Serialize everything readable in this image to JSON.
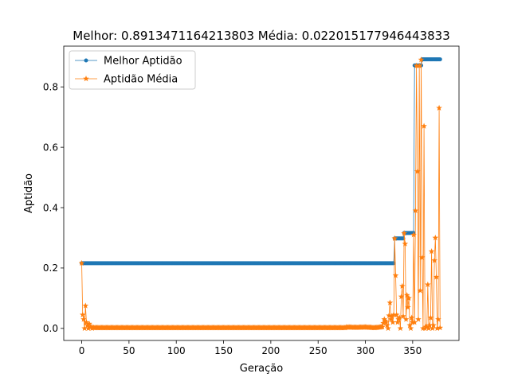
{
  "chart_data": {
    "type": "line",
    "title": "Melhor: 0.8913471164213803 Média: 0.022015177946443833",
    "xlabel": "Geração",
    "ylabel": "Aptidão",
    "xlim": [
      -19,
      399
    ],
    "ylim": [
      -0.04,
      0.935
    ],
    "xticks": [
      0,
      50,
      100,
      150,
      200,
      250,
      300,
      350
    ],
    "yticks": [
      0.0,
      0.2,
      0.4,
      0.6,
      0.8
    ],
    "xtick_labels": [
      "0",
      "50",
      "100",
      "150",
      "200",
      "250",
      "300",
      "350"
    ],
    "ytick_labels": [
      "0.0",
      "0.2",
      "0.4",
      "0.6",
      "0.8"
    ],
    "grid": false,
    "legend": "upper left",
    "n_generations": 380,
    "series": [
      {
        "name": "Melhor Aptidão",
        "color": "#1f77b4",
        "marker": "circle",
        "segments": [
          {
            "from": 0,
            "to": 330,
            "value": 0.216
          },
          {
            "from": 331,
            "to": 340,
            "value": 0.298
          },
          {
            "from": 341,
            "to": 351,
            "value": 0.316
          },
          {
            "from": 352,
            "to": 359,
            "value": 0.871
          },
          {
            "from": 360,
            "to": 379,
            "value": 0.8913
          }
        ]
      },
      {
        "name": "Aptidão Média",
        "color": "#ff7f0e",
        "marker": "star",
        "baseline": 0.002,
        "points": [
          [
            0,
            0.216
          ],
          [
            1,
            0.045
          ],
          [
            2,
            0.03
          ],
          [
            3,
            0.0
          ],
          [
            4,
            0.075
          ],
          [
            5,
            0.02
          ],
          [
            6,
            0.01
          ],
          [
            7,
            0.0
          ],
          [
            8,
            0.015
          ],
          [
            9,
            0.003
          ],
          [
            10,
            0.005
          ],
          [
            11,
            0.0
          ],
          [
            12,
            0.004
          ],
          [
            280,
            0.004
          ],
          [
            290,
            0.003
          ],
          [
            300,
            0.004
          ],
          [
            310,
            0.002
          ],
          [
            318,
            0.005
          ],
          [
            320,
            0.03
          ],
          [
            322,
            0.02
          ],
          [
            324,
            0.0
          ],
          [
            326,
            0.085
          ],
          [
            327,
            0.03
          ],
          [
            328,
            0.04
          ],
          [
            329,
            0.02
          ],
          [
            330,
            0.045
          ],
          [
            331,
            0.298
          ],
          [
            332,
            0.175
          ],
          [
            333,
            0.045
          ],
          [
            334,
            0.02
          ],
          [
            335,
            0.03
          ],
          [
            336,
            0.035
          ],
          [
            337,
            0.0
          ],
          [
            338,
            0.105
          ],
          [
            339,
            0.14
          ],
          [
            340,
            0.04
          ],
          [
            341,
            0.315
          ],
          [
            342,
            0.28
          ],
          [
            343,
            0.03
          ],
          [
            344,
            0.11
          ],
          [
            345,
            0.07
          ],
          [
            346,
            0.1
          ],
          [
            347,
            0.01
          ],
          [
            348,
            0.0
          ],
          [
            349,
            0.035
          ],
          [
            350,
            0.02
          ],
          [
            351,
            0.31
          ],
          [
            352,
            0.02
          ],
          [
            353,
            0.39
          ],
          [
            354,
            0.87
          ],
          [
            355,
            0.52
          ],
          [
            356,
            0.03
          ],
          [
            357,
            0.87
          ],
          [
            358,
            0.125
          ],
          [
            359,
            0.89
          ],
          [
            360,
            0.235
          ],
          [
            361,
            0.0
          ],
          [
            362,
            0.67
          ],
          [
            363,
            0.0
          ],
          [
            364,
            0.005
          ],
          [
            365,
            0.005
          ],
          [
            366,
            0.145
          ],
          [
            367,
            0.0
          ],
          [
            368,
            0.01
          ],
          [
            369,
            0.035
          ],
          [
            370,
            0.255
          ],
          [
            371,
            0.0
          ],
          [
            372,
            0.01
          ],
          [
            373,
            0.225
          ],
          [
            374,
            0.3
          ],
          [
            375,
            0.17
          ],
          [
            376,
            0.0
          ],
          [
            377,
            0.03
          ],
          [
            378,
            0.73
          ]
        ]
      }
    ]
  }
}
